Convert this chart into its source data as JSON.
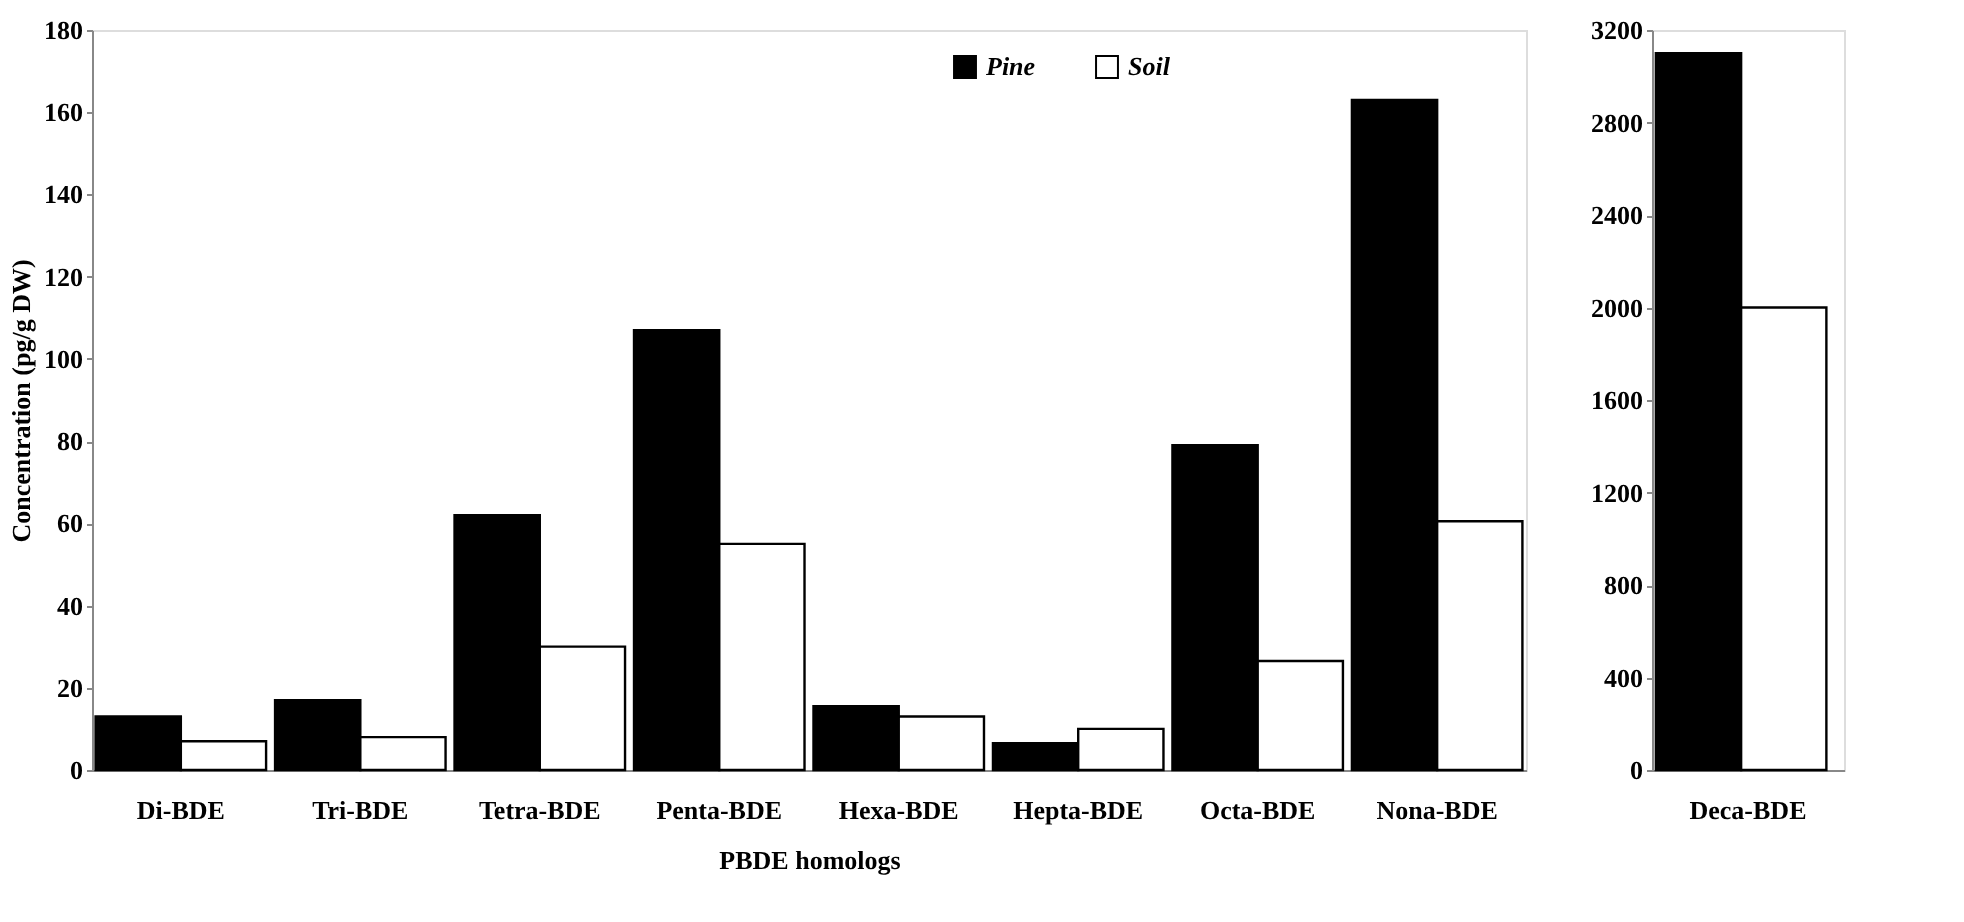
{
  "chart_data": [
    {
      "type": "bar",
      "xlabel": "PBDE homologs",
      "ylabel": "Concentration (pg/g DW)",
      "categories": [
        "Di-BDE",
        "Tri-BDE",
        "Tetra-BDE",
        "Penta-BDE",
        "Hexa-BDE",
        "Hepta-BDE",
        "Octa-BDE",
        "Nona-BDE"
      ],
      "series": [
        {
          "name": "Pine",
          "color": "#000000",
          "values": [
            13,
            17,
            62,
            107,
            15.5,
            6.5,
            79,
            163
          ]
        },
        {
          "name": "Soil",
          "color": "#ffffff",
          "values": [
            7,
            8,
            30,
            55,
            13,
            10,
            26.5,
            60.5
          ]
        }
      ],
      "ylim": [
        0,
        180
      ],
      "yticks": [
        0,
        20,
        40,
        60,
        80,
        100,
        120,
        140,
        160,
        180
      ],
      "grid": false,
      "legend": "top"
    },
    {
      "type": "bar",
      "categories": [
        "Deca-BDE"
      ],
      "series": [
        {
          "color": "#000000",
          "values": [
            3100
          ]
        },
        {
          "color": "#ffffff",
          "values": [
            2000
          ]
        }
      ],
      "ylim": [
        0,
        3200
      ],
      "yticks": [
        0,
        400,
        800,
        1200,
        1600,
        2000,
        2400,
        2800,
        3200
      ],
      "grid": false
    }
  ]
}
